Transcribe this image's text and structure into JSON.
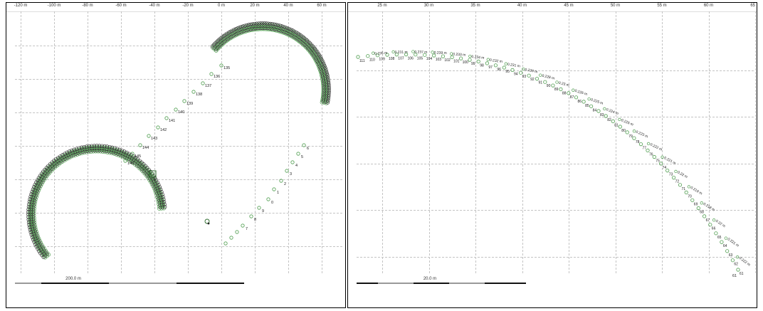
{
  "left_view": {
    "x_ticks": [
      "-120 m",
      "-100 m",
      "-80 m",
      "-60 m",
      "-40 m",
      "-20 m",
      "0 m",
      "20 m",
      "40 m",
      "60 m"
    ],
    "scale_label": "200.0 m",
    "point_labels_upper": [
      "135",
      "136",
      "137",
      "138",
      "139",
      "140",
      "141",
      "142",
      "143",
      "144",
      "145",
      "146"
    ],
    "point_labels_lower": [
      "6",
      "5",
      "4",
      "3",
      "2",
      "1",
      "0",
      "9",
      "8",
      "7"
    ],
    "marker_label": "1",
    "colors": {
      "track_green": "#4f9e4f",
      "track_dark": "#333333",
      "grid": "#c4c4c4"
    }
  },
  "right_view": {
    "x_ticks": [
      "25 m",
      "30 m",
      "35 m",
      "40 m",
      "45 m",
      "50 m",
      "55 m",
      "60 m",
      "65 m"
    ],
    "scale_label": "20.0 m",
    "top_row_labels": [
      "111",
      "110",
      "109",
      "108",
      "107",
      "106",
      "105",
      "104",
      "103",
      "102",
      "101",
      "100",
      "99",
      "98",
      "97",
      "96",
      "95",
      "94",
      "93",
      "92",
      "91",
      "90",
      "89",
      "88",
      "87",
      "86",
      "85",
      "84",
      "83",
      "82",
      "81",
      "80",
      "79",
      "78",
      "77",
      "76",
      "75",
      "74",
      "73",
      "72",
      "71",
      "70",
      "69",
      "68",
      "67",
      "66",
      "65",
      "64",
      "63",
      "62",
      "61"
    ],
    "value_labels": [
      "0.235 m",
      "0.231 m",
      "0.237 m",
      "0.239 m",
      "0.233 m",
      "0.234 m",
      "0.232 m",
      "0.231 m",
      "0.229 m",
      "0.228 m",
      "0.23 m",
      "0.226 m",
      "0.225 m",
      "0.224 m",
      "0.225 m",
      "0.223 m",
      "0.222 m",
      "0.221 m",
      "0.22 m",
      "0.219 m",
      "0.218 m",
      "0.22 m",
      "0.221 m",
      "0.222 m"
    ],
    "end_label": "61"
  }
}
